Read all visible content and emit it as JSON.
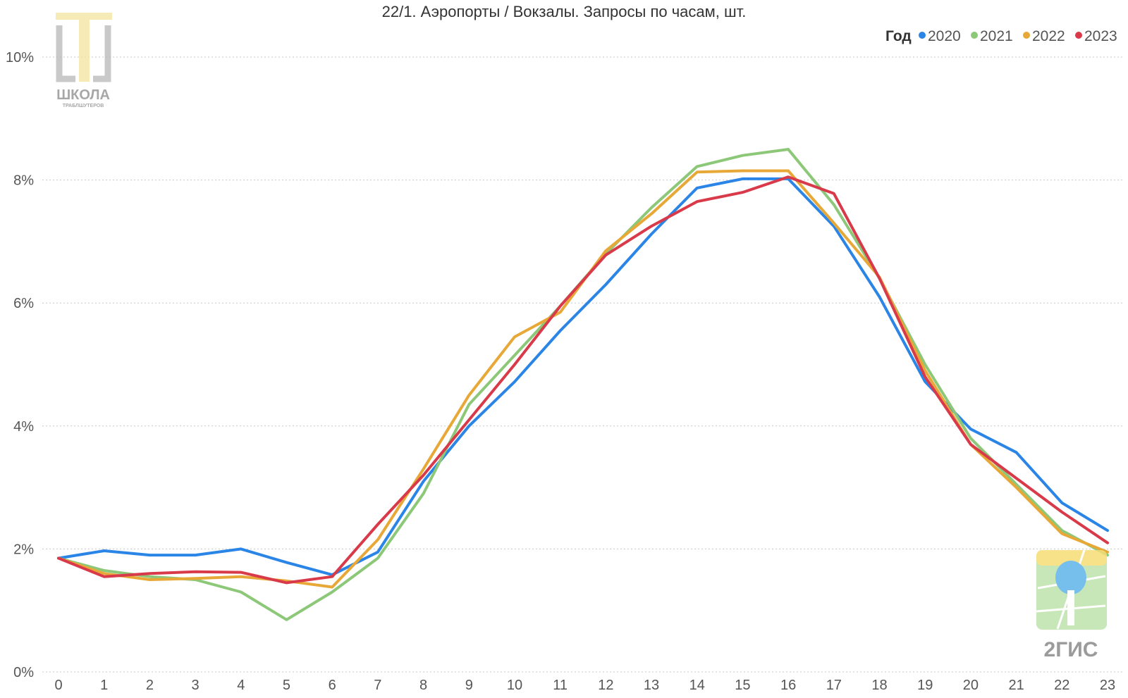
{
  "chart_data": {
    "type": "line",
    "title": "22/1. Аэропорты / Вокзалы. Запросы по часам, шт.",
    "legend_title": "Год",
    "legend_position": "top-right",
    "x": [
      0,
      1,
      2,
      3,
      4,
      5,
      6,
      7,
      8,
      9,
      10,
      11,
      12,
      13,
      14,
      15,
      16,
      17,
      18,
      19,
      20,
      21,
      22,
      23
    ],
    "x_tick_labels": [
      "0",
      "1",
      "2",
      "3",
      "4",
      "5",
      "6",
      "7",
      "8",
      "9",
      "10",
      "11",
      "12",
      "13",
      "14",
      "15",
      "16",
      "17",
      "18",
      "19",
      "20",
      "21",
      "22",
      "23"
    ],
    "y_ticks": [
      0,
      2,
      4,
      6,
      8,
      10
    ],
    "y_tick_labels": [
      "0%",
      "2%",
      "4%",
      "6%",
      "8%",
      "10%"
    ],
    "ylim": [
      0,
      10
    ],
    "grid": true,
    "series": [
      {
        "name": "2020",
        "color": "#2a85e6",
        "values": [
          1.85,
          1.97,
          1.9,
          1.9,
          2.0,
          1.78,
          1.58,
          1.95,
          3.1,
          4.0,
          4.72,
          5.55,
          6.3,
          7.12,
          7.87,
          8.02,
          8.02,
          7.25,
          6.1,
          4.72,
          3.95,
          3.57,
          2.75,
          2.3
        ]
      },
      {
        "name": "2021",
        "color": "#8cc878",
        "values": [
          1.85,
          1.65,
          1.55,
          1.5,
          1.3,
          0.85,
          1.3,
          1.85,
          2.9,
          4.35,
          5.15,
          5.95,
          6.8,
          7.55,
          8.22,
          8.4,
          8.5,
          7.6,
          6.4,
          5.0,
          3.8,
          3.05,
          2.3,
          1.9
        ]
      },
      {
        "name": "2022",
        "color": "#e8a838",
        "values": [
          1.85,
          1.6,
          1.5,
          1.52,
          1.55,
          1.48,
          1.38,
          2.15,
          3.3,
          4.5,
          5.45,
          5.85,
          6.85,
          7.45,
          8.13,
          8.15,
          8.15,
          7.3,
          6.42,
          4.9,
          3.7,
          3.0,
          2.25,
          1.95
        ]
      },
      {
        "name": "2023",
        "color": "#d93a4a",
        "values": [
          1.85,
          1.55,
          1.6,
          1.63,
          1.62,
          1.45,
          1.55,
          2.4,
          3.2,
          4.1,
          5.0,
          5.95,
          6.78,
          7.25,
          7.65,
          7.8,
          8.05,
          7.78,
          6.4,
          4.8,
          3.7,
          3.15,
          2.6,
          2.1
        ]
      }
    ]
  },
  "logos": {
    "top_left_text": "ШКОЛА",
    "top_left_subtext": "ТРАБЛШУТЕРОВ",
    "bottom_right_text": "2ГИС"
  }
}
